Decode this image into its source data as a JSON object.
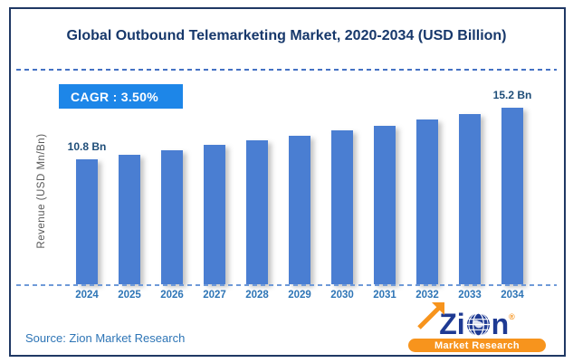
{
  "header": {
    "title": "Global Outbound Telemarketing Market, 2020-2034 (USD Billion)"
  },
  "cagr_badge": {
    "text": "CAGR :  3.50%"
  },
  "chart_data": {
    "type": "bar",
    "title": "Global Outbound Telemarketing Market, 2020-2034 (USD Billion)",
    "categories": [
      "2024",
      "2025",
      "2026",
      "2027",
      "2028",
      "2029",
      "2030",
      "2031",
      "2032",
      "2033",
      "2034"
    ],
    "values": [
      10.8,
      11.2,
      11.6,
      12.0,
      12.4,
      12.8,
      13.3,
      13.7,
      14.2,
      14.7,
      15.2
    ],
    "point_labels": [
      "10.8 Bn",
      "",
      "",
      "",
      "",
      "",
      "",
      "",
      "",
      "",
      "15.2 Bn"
    ],
    "xlabel": "",
    "ylabel": "Revenue (USD Mn/Bn)",
    "ylim": [
      0,
      16
    ],
    "grid": false,
    "legend": false,
    "cagr_percent": "3.50%",
    "units": "USD Billion",
    "bar_color": "#4a7ed2"
  },
  "footer": {
    "source": "Source: Zion Market Research"
  },
  "logo": {
    "brand_left": "Zi",
    "brand_right": "n",
    "registered": "®",
    "tagline": "Market Research"
  },
  "colors": {
    "frame_border": "#1f3864",
    "title_text": "#17386b",
    "badge_background": "#1d86e8",
    "bar_fill": "#4a7ed2",
    "year_label": "#2e75b6",
    "value_label": "#1f4e79",
    "source_text": "#2e75b6",
    "axis_label": "#595959",
    "logo_navy": "#1e3a93",
    "logo_orange": "#f7941d"
  }
}
